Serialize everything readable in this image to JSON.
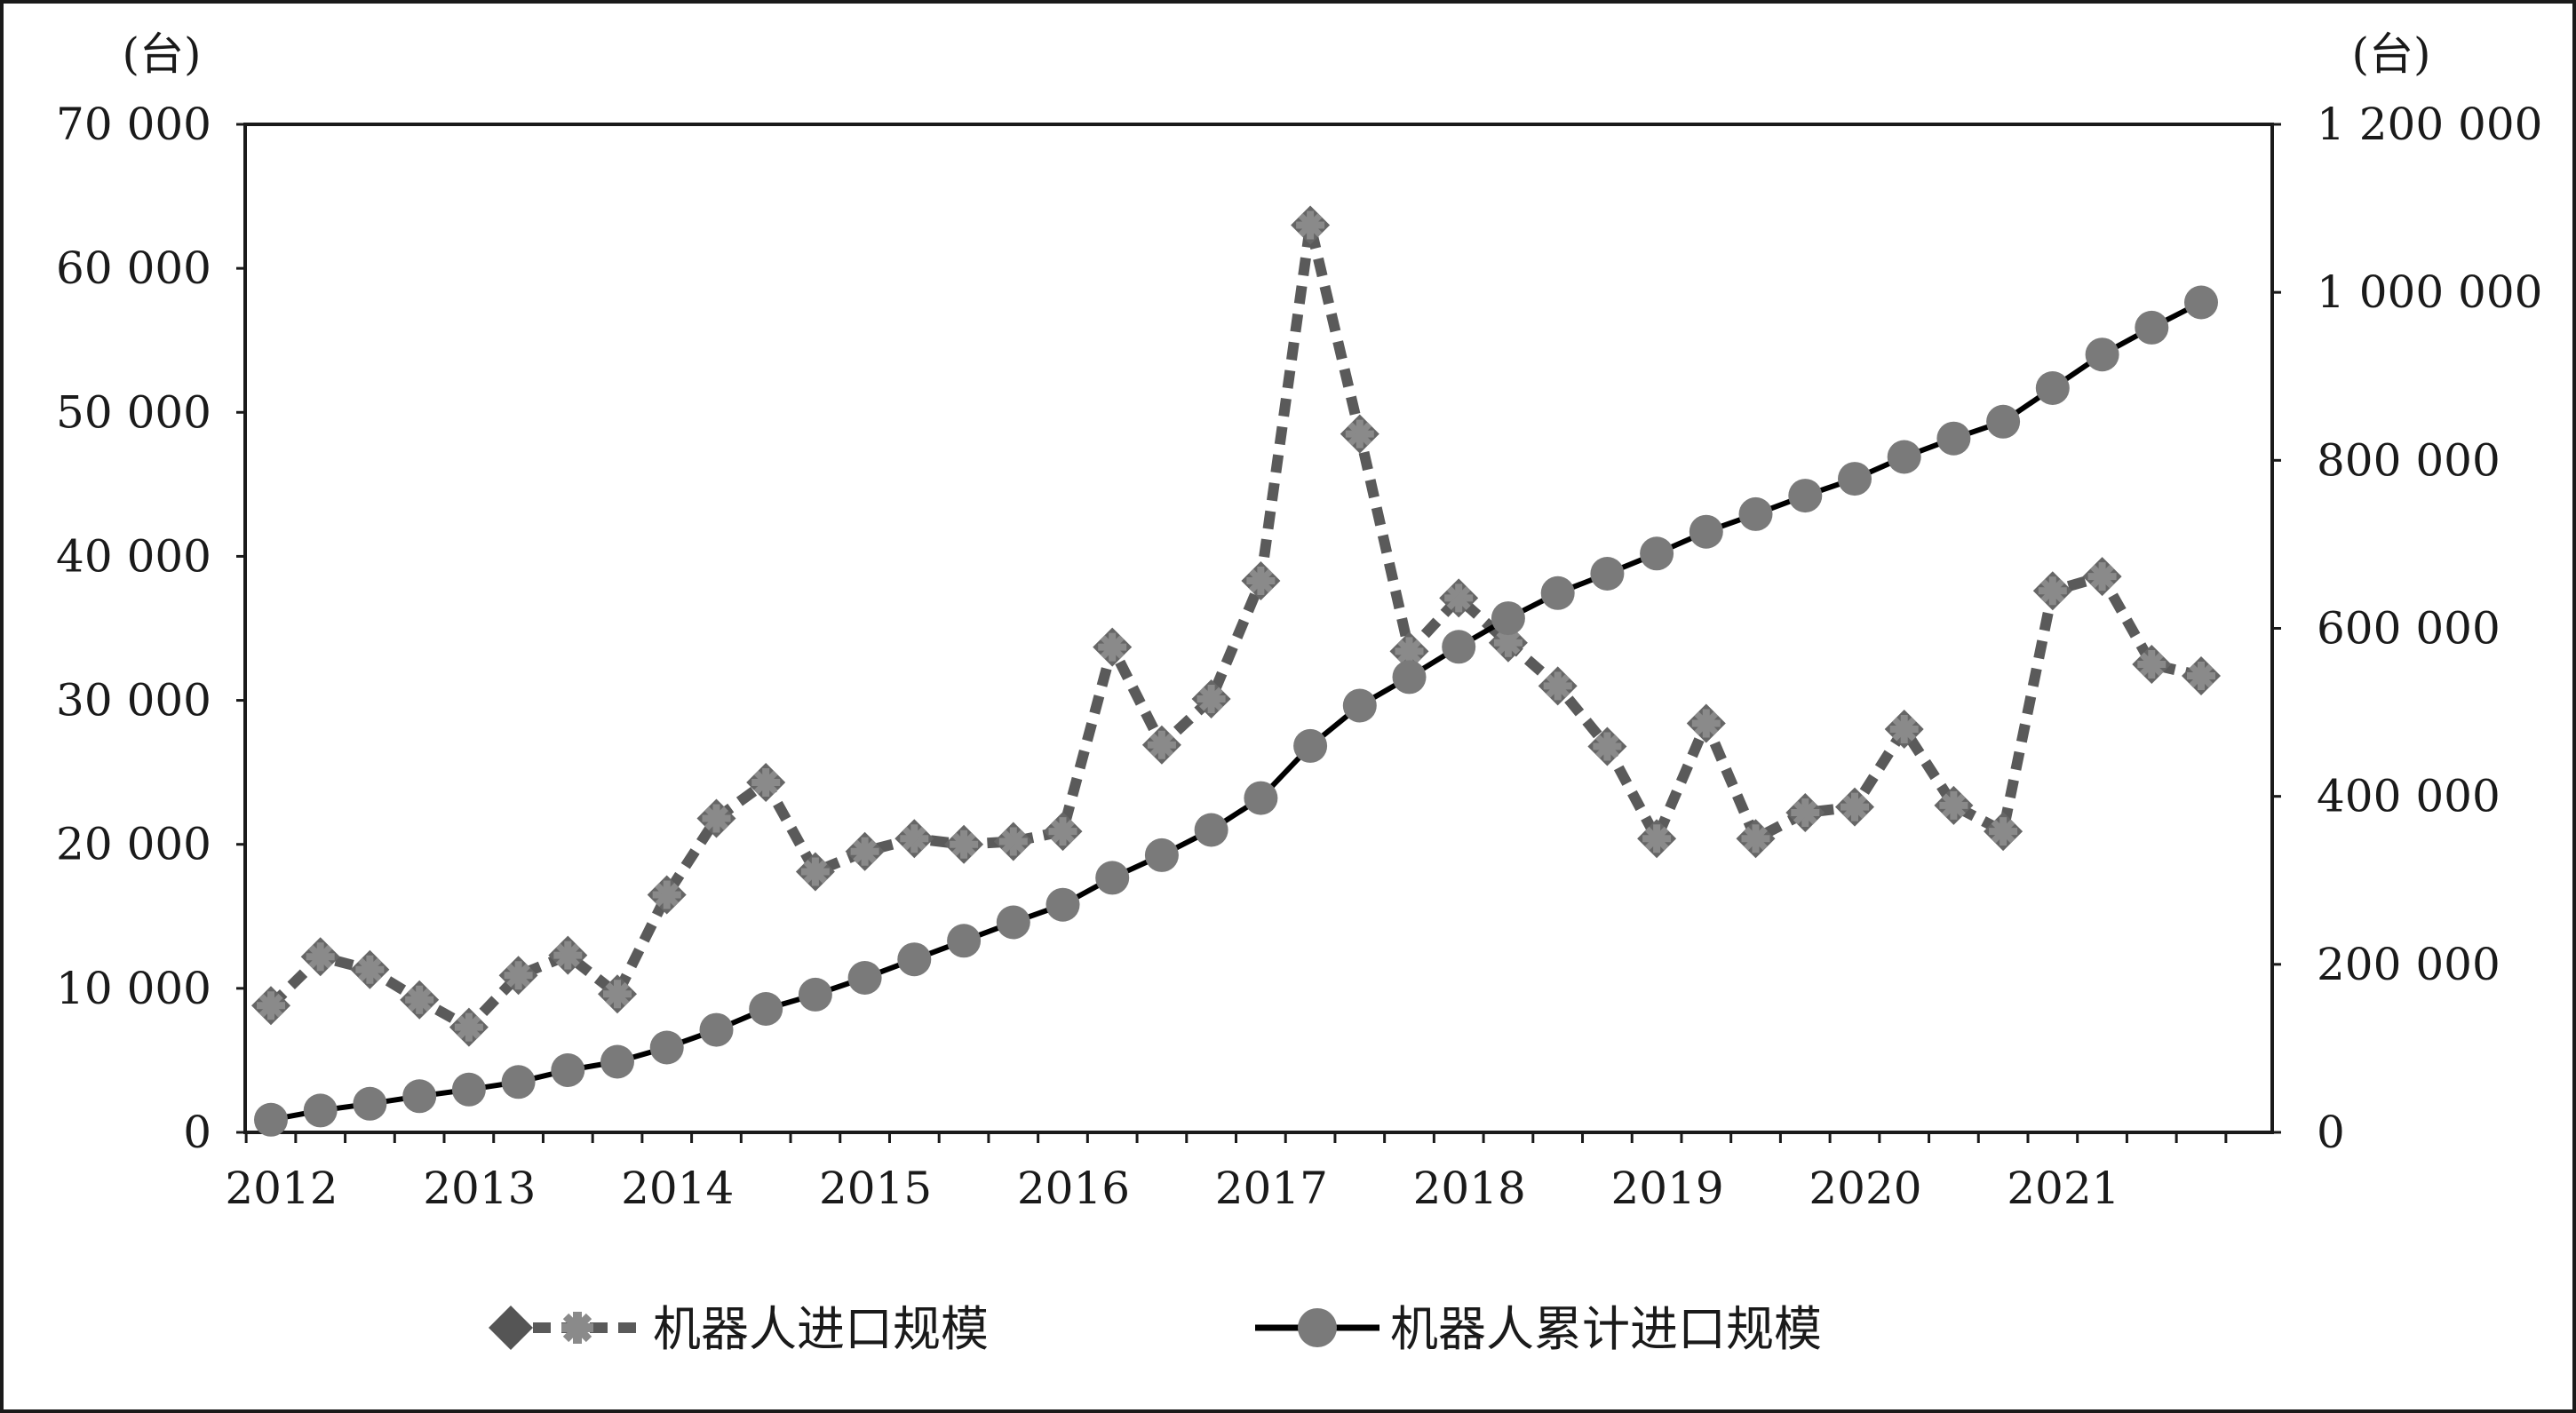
{
  "chart_data": {
    "type": "line",
    "left_unit": "(台)",
    "right_unit": "(台)",
    "x_tick_labels": [
      "2012",
      "2013",
      "2014",
      "2015",
      "2016",
      "2017",
      "2018",
      "2019",
      "2020",
      "2021"
    ],
    "y_left": {
      "min": 0,
      "max": 70000,
      "ticks": [
        0,
        10000,
        20000,
        30000,
        40000,
        50000,
        60000,
        70000
      ],
      "tick_labels": [
        "0",
        "10 000",
        "20 000",
        "30 000",
        "40 000",
        "50 000",
        "60 000",
        "70 000"
      ]
    },
    "y_right": {
      "min": 0,
      "max": 1200000,
      "ticks": [
        0,
        200000,
        400000,
        600000,
        800000,
        1000000,
        1200000
      ],
      "tick_labels": [
        "0",
        "200 000",
        "400 000",
        "600 000",
        "800 000",
        "1 000 000",
        "1 200 000"
      ]
    },
    "x_periods": [
      "2012Q1",
      "2012Q2",
      "2012Q3",
      "2012Q4",
      "2013Q1",
      "2013Q2",
      "2013Q3",
      "2013Q4",
      "2014Q1",
      "2014Q2",
      "2014Q3",
      "2014Q4",
      "2015Q1",
      "2015Q2",
      "2015Q3",
      "2015Q4",
      "2016Q1",
      "2016Q2",
      "2016Q3",
      "2016Q4",
      "2017Q1",
      "2017Q2",
      "2017Q3",
      "2017Q4",
      "2018Q1",
      "2018Q2",
      "2018Q3",
      "2018Q4",
      "2019Q1",
      "2019Q2",
      "2019Q3",
      "2019Q4",
      "2020Q1",
      "2020Q2",
      "2020Q3",
      "2020Q4",
      "2021Q1",
      "2021Q2",
      "2021Q3",
      "2021Q4"
    ],
    "series": [
      {
        "name": "机器人进口规模",
        "axis": "left",
        "values": [
          8800,
          12200,
          11300,
          9200,
          7300,
          10900,
          12300,
          9600,
          16500,
          21800,
          24300,
          18100,
          19500,
          20400,
          20000,
          20200,
          20900,
          33700,
          26900,
          30100,
          38300,
          63000,
          48500,
          33400,
          37100,
          34000,
          31000,
          26800,
          20400,
          28400,
          20400,
          22200,
          22600,
          28000,
          22700,
          20900,
          37600,
          38600,
          32500,
          31700
        ]
      },
      {
        "name": "机器人累计进口规模",
        "axis": "right",
        "values": [
          15000,
          26000,
          34000,
          43000,
          51000,
          60000,
          74000,
          84000,
          101000,
          122000,
          147000,
          164000,
          184000,
          206000,
          228000,
          250000,
          271000,
          303000,
          330000,
          360000,
          398000,
          460000,
          508000,
          542000,
          578000,
          612000,
          642000,
          665000,
          689000,
          715000,
          736000,
          758000,
          778000,
          804000,
          826000,
          846000,
          886000,
          926000,
          958000,
          988000
        ]
      }
    ],
    "grid": false,
    "legend_position": "bottom",
    "colors": {
      "import_series": "#5a5a5a",
      "cumulative_series": "#000000",
      "cumulative_marker": "#7a7a7a",
      "import_marker": "#666666",
      "import_marker_star": "#8a8a8a"
    }
  }
}
